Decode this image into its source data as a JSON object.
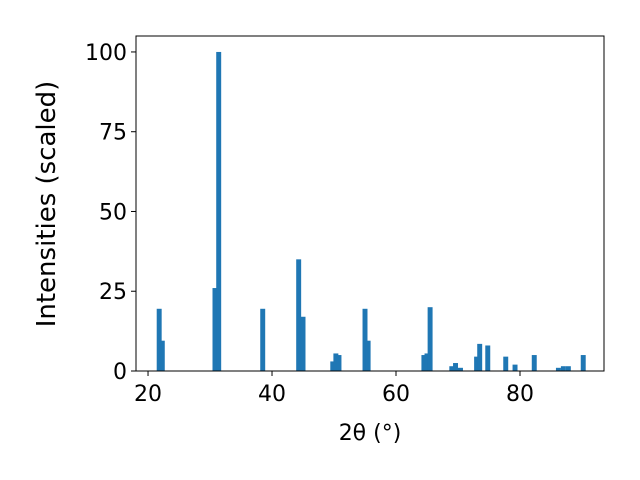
{
  "chart_data": {
    "type": "bar",
    "xlabel": "2θ (°)",
    "ylabel": "Intensities (scaled)",
    "color": "#1f77b4",
    "x": [
      21.8,
      22.3,
      30.8,
      31.4,
      38.5,
      44.3,
      45.0,
      49.8,
      50.3,
      50.8,
      55.0,
      55.5,
      64.5,
      65.0,
      65.5,
      69.0,
      69.6,
      70.4,
      73.0,
      73.5,
      74.8,
      77.7,
      79.2,
      82.3,
      86.2,
      87.0,
      87.8,
      90.2
    ],
    "values": [
      19.5,
      9.5,
      26,
      100,
      19.5,
      35,
      17,
      3,
      5.5,
      5,
      19.5,
      9.5,
      5,
      5.5,
      20,
      1.5,
      2.5,
      1,
      4.5,
      8.5,
      8,
      4.5,
      2,
      5,
      1,
      1.5,
      1.5,
      5
    ],
    "xlim": [
      18.06,
      93.55
    ],
    "ylim": [
      0,
      105
    ],
    "xticks": [
      20,
      40,
      60,
      80
    ],
    "yticks": [
      0,
      25,
      50,
      75,
      100
    ]
  }
}
